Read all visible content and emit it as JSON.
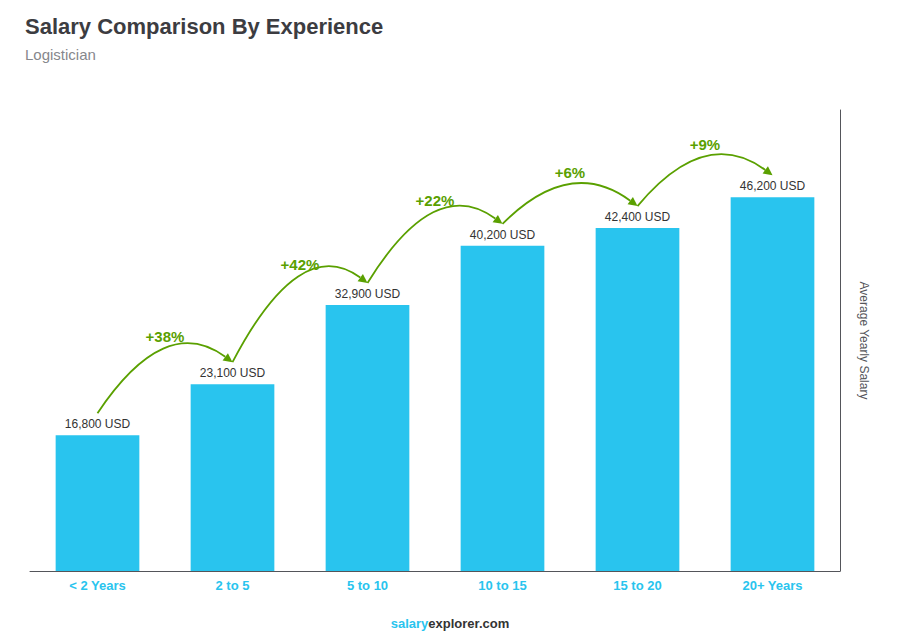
{
  "chart_data": {
    "type": "bar",
    "title": "Salary Comparison By Experience",
    "subtitle": "Logistician",
    "categories": [
      "< 2 Years",
      "2 to 5",
      "5 to 10",
      "10 to 15",
      "15 to 20",
      "20+ Years"
    ],
    "values": [
      16800,
      23100,
      32900,
      40200,
      42400,
      46200
    ],
    "value_labels": [
      "16,800 USD",
      "23,100 USD",
      "32,900 USD",
      "40,200 USD",
      "42,400 USD",
      "46,200 USD"
    ],
    "data_labels": true,
    "color": "#29c4ee",
    "ylabel": "Average Yearly Salary",
    "ylim": [
      0,
      57000
    ],
    "tick_labels": "x",
    "grid": false,
    "annotations": [
      "+38%",
      "+42%",
      "+22%",
      "+6%",
      "+9%"
    ],
    "footer": [
      "salary",
      "explorer.com"
    ]
  }
}
